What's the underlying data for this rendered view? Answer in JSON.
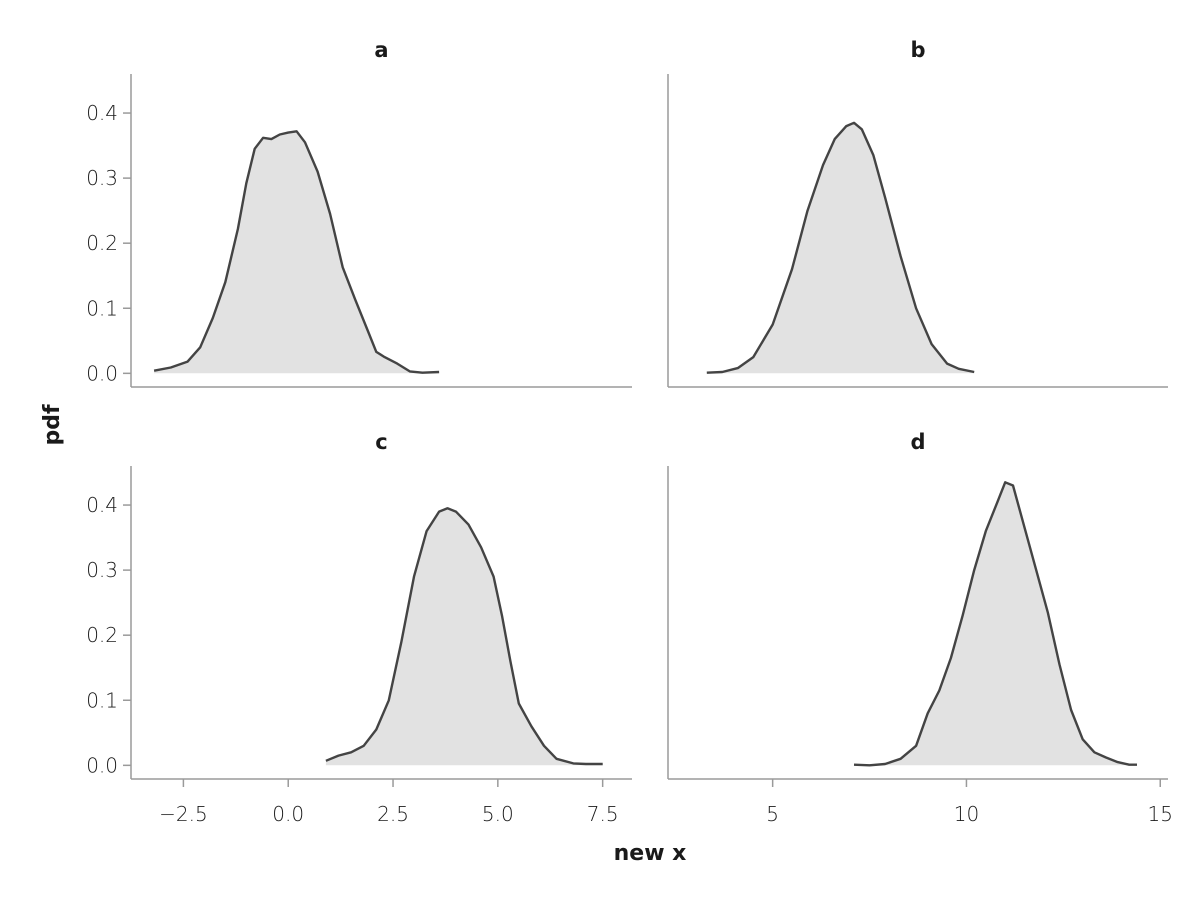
{
  "figure": {
    "ylabel": "pdf",
    "xlabel": "new x"
  },
  "colors": {
    "fill": "#e2e2e2",
    "line": "#444444",
    "spine": "#9a9a9a"
  },
  "chart_data": [
    {
      "type": "area",
      "title": "a",
      "xlim": [
        -3.75,
        8.2
      ],
      "ylim": [
        -0.021,
        0.46
      ],
      "xticks": [],
      "yticks": [
        0.0,
        0.1,
        0.2,
        0.3,
        0.4
      ],
      "ytick_labels": [
        "0.0",
        "0.1",
        "0.2",
        "0.3",
        "0.4"
      ],
      "x": [
        -3.2,
        -2.8,
        -2.4,
        -2.1,
        -1.8,
        -1.5,
        -1.2,
        -1.0,
        -0.8,
        -0.6,
        -0.4,
        -0.2,
        0.0,
        0.2,
        0.4,
        0.7,
        1.0,
        1.3,
        1.6,
        1.9,
        2.1,
        2.3,
        2.6,
        2.9,
        3.2,
        3.6
      ],
      "y": [
        0.004,
        0.009,
        0.018,
        0.04,
        0.085,
        0.14,
        0.222,
        0.292,
        0.345,
        0.362,
        0.36,
        0.367,
        0.37,
        0.372,
        0.355,
        0.31,
        0.245,
        0.163,
        0.113,
        0.065,
        0.033,
        0.025,
        0.015,
        0.003,
        0.001,
        0.002
      ]
    },
    {
      "type": "area",
      "title": "b",
      "xlim": [
        2.3,
        15.2
      ],
      "ylim": [
        -0.021,
        0.46
      ],
      "xticks": [],
      "yticks": [],
      "ytick_labels": [],
      "x": [
        3.3,
        3.7,
        4.1,
        4.5,
        5.0,
        5.5,
        5.9,
        6.3,
        6.6,
        6.9,
        7.1,
        7.3,
        7.6,
        7.9,
        8.3,
        8.7,
        9.1,
        9.5,
        9.8,
        10.2
      ],
      "y": [
        0.001,
        0.002,
        0.008,
        0.025,
        0.075,
        0.16,
        0.25,
        0.32,
        0.36,
        0.38,
        0.385,
        0.375,
        0.335,
        0.27,
        0.18,
        0.1,
        0.045,
        0.015,
        0.007,
        0.002
      ]
    },
    {
      "type": "area",
      "title": "c",
      "xlim": [
        -3.75,
        8.2
      ],
      "ylim": [
        -0.021,
        0.46
      ],
      "xticks": [
        -2.5,
        0.0,
        2.5,
        5.0,
        7.5
      ],
      "xtick_labels": [
        "−2.5",
        "0.0",
        "2.5",
        "5.0",
        "7.5"
      ],
      "yticks": [
        0.0,
        0.1,
        0.2,
        0.3,
        0.4
      ],
      "ytick_labels": [
        "0.0",
        "0.1",
        "0.2",
        "0.3",
        "0.4"
      ],
      "x": [
        0.9,
        1.2,
        1.5,
        1.8,
        2.1,
        2.4,
        2.7,
        3.0,
        3.3,
        3.6,
        3.8,
        4.0,
        4.3,
        4.6,
        4.9,
        5.1,
        5.3,
        5.5,
        5.8,
        6.1,
        6.4,
        6.8,
        7.1,
        7.5
      ],
      "y": [
        0.007,
        0.015,
        0.02,
        0.03,
        0.055,
        0.1,
        0.19,
        0.29,
        0.36,
        0.39,
        0.395,
        0.39,
        0.37,
        0.335,
        0.29,
        0.23,
        0.16,
        0.095,
        0.06,
        0.03,
        0.01,
        0.003,
        0.002,
        0.002
      ]
    },
    {
      "type": "area",
      "title": "d",
      "xlim": [
        2.3,
        15.2
      ],
      "ylim": [
        -0.021,
        0.46
      ],
      "xticks": [
        5,
        10,
        15
      ],
      "xtick_labels": [
        "5",
        "10",
        "15"
      ],
      "yticks": [],
      "ytick_labels": [],
      "x": [
        7.1,
        7.5,
        7.9,
        8.3,
        8.7,
        9.0,
        9.3,
        9.6,
        9.9,
        10.2,
        10.5,
        10.8,
        11.0,
        11.2,
        11.5,
        11.8,
        12.1,
        12.4,
        12.7,
        13.0,
        13.3,
        13.6,
        13.9,
        14.2,
        14.4
      ],
      "y": [
        0.001,
        0.0,
        0.002,
        0.01,
        0.03,
        0.08,
        0.115,
        0.165,
        0.23,
        0.3,
        0.36,
        0.405,
        0.435,
        0.43,
        0.365,
        0.3,
        0.235,
        0.155,
        0.085,
        0.04,
        0.02,
        0.012,
        0.005,
        0.001,
        0.001
      ]
    }
  ]
}
